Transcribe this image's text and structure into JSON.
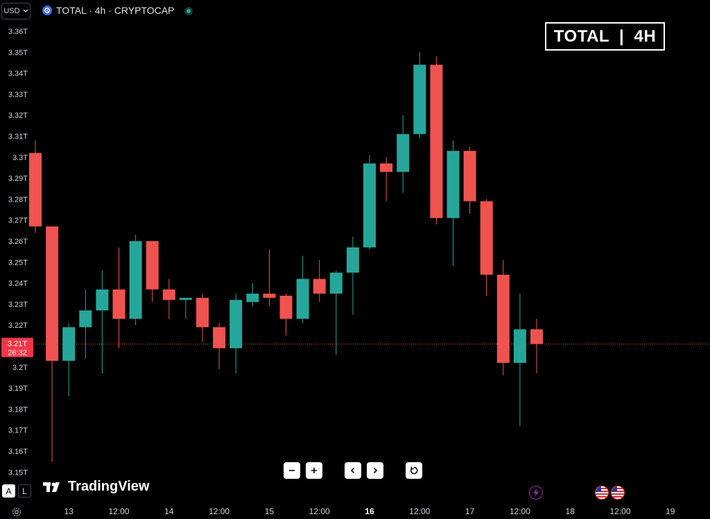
{
  "header": {
    "currency_label": "USD",
    "symbol_title": "TOTAL · 4h · CRYPTOCAP",
    "symbol_icon": "cryptocap-icon",
    "live_status_icon": "market-open-dot-icon"
  },
  "badge": {
    "text": "TOTAL  |  4H"
  },
  "price_marker": {
    "price": "3.21T",
    "countdown": "26:32",
    "color": "#f23645"
  },
  "zoom_controls": {
    "buttons": [
      "zoom-out-icon",
      "zoom-in-icon",
      "scroll-left-icon",
      "scroll-right-icon",
      "reset-icon"
    ]
  },
  "branding": {
    "logo_text": "TradingView"
  },
  "axis_toggles": {
    "auto": "A",
    "log": "L"
  },
  "events": {
    "bolt_icon": "lightning-icon",
    "flags": [
      "us-flag-icon",
      "us-flag-icon"
    ]
  },
  "colors": {
    "up": "#26a69a",
    "down": "#ef5350",
    "background": "#000000",
    "axis_text": "#d1d4dc"
  },
  "chart_data": {
    "type": "candlestick",
    "title": "TOTAL · 4h · CRYPTOCAP",
    "ylabel": "",
    "ylim": [
      3.15,
      3.36
    ],
    "y_ticks": [
      "3.36T",
      "3.35T",
      "3.34T",
      "3.33T",
      "3.32T",
      "3.31T",
      "3.3T",
      "3.29T",
      "3.28T",
      "3.27T",
      "3.26T",
      "3.25T",
      "3.24T",
      "3.23T",
      "3.22T",
      "3.21T",
      "3.2T",
      "3.19T",
      "3.18T",
      "3.17T",
      "3.16T",
      "3.15T"
    ],
    "y_tick_values": [
      3.36,
      3.35,
      3.34,
      3.33,
      3.32,
      3.31,
      3.3,
      3.29,
      3.28,
      3.27,
      3.26,
      3.25,
      3.24,
      3.23,
      3.22,
      3.21,
      3.2,
      3.19,
      3.18,
      3.17,
      3.16,
      3.15
    ],
    "x_ticks": [
      {
        "label": "13",
        "bar": 2,
        "bold": false
      },
      {
        "label": "12:00",
        "bar": 5,
        "bold": false
      },
      {
        "label": "14",
        "bar": 8,
        "bold": false
      },
      {
        "label": "12:00",
        "bar": 11,
        "bold": false
      },
      {
        "label": "15",
        "bar": 14,
        "bold": false
      },
      {
        "label": "12:00",
        "bar": 17,
        "bold": false
      },
      {
        "label": "16",
        "bar": 20,
        "bold": true
      },
      {
        "label": "12:00",
        "bar": 23,
        "bold": false
      },
      {
        "label": "17",
        "bar": 26,
        "bold": false
      },
      {
        "label": "12:00",
        "bar": 29,
        "bold": false
      },
      {
        "label": "18",
        "bar": 32,
        "bold": false
      },
      {
        "label": "12:00",
        "bar": 35,
        "bold": false
      },
      {
        "label": "19",
        "bar": 38,
        "bold": false
      }
    ],
    "candles": [
      {
        "o": 3.302,
        "h": 3.308,
        "l": 3.264,
        "c": 3.267
      },
      {
        "o": 3.267,
        "h": 3.267,
        "l": 3.155,
        "c": 3.203
      },
      {
        "o": 3.203,
        "h": 3.221,
        "l": 3.186,
        "c": 3.219
      },
      {
        "o": 3.219,
        "h": 3.237,
        "l": 3.204,
        "c": 3.227
      },
      {
        "o": 3.227,
        "h": 3.246,
        "l": 3.197,
        "c": 3.237
      },
      {
        "o": 3.237,
        "h": 3.257,
        "l": 3.209,
        "c": 3.223
      },
      {
        "o": 3.223,
        "h": 3.263,
        "l": 3.22,
        "c": 3.26
      },
      {
        "o": 3.26,
        "h": 3.26,
        "l": 3.231,
        "c": 3.237
      },
      {
        "o": 3.237,
        "h": 3.242,
        "l": 3.223,
        "c": 3.232
      },
      {
        "o": 3.232,
        "h": 3.233,
        "l": 3.223,
        "c": 3.233
      },
      {
        "o": 3.233,
        "h": 3.235,
        "l": 3.212,
        "c": 3.219
      },
      {
        "o": 3.219,
        "h": 3.221,
        "l": 3.199,
        "c": 3.209
      },
      {
        "o": 3.209,
        "h": 3.235,
        "l": 3.197,
        "c": 3.232
      },
      {
        "o": 3.231,
        "h": 3.24,
        "l": 3.229,
        "c": 3.235
      },
      {
        "o": 3.235,
        "h": 3.256,
        "l": 3.229,
        "c": 3.233
      },
      {
        "o": 3.234,
        "h": 3.235,
        "l": 3.215,
        "c": 3.223
      },
      {
        "o": 3.223,
        "h": 3.253,
        "l": 3.221,
        "c": 3.242
      },
      {
        "o": 3.242,
        "h": 3.251,
        "l": 3.231,
        "c": 3.235
      },
      {
        "o": 3.235,
        "h": 3.246,
        "l": 3.206,
        "c": 3.245
      },
      {
        "o": 3.245,
        "h": 3.262,
        "l": 3.225,
        "c": 3.257
      },
      {
        "o": 3.257,
        "h": 3.301,
        "l": 3.256,
        "c": 3.297
      },
      {
        "o": 3.297,
        "h": 3.3,
        "l": 3.279,
        "c": 3.293
      },
      {
        "o": 3.293,
        "h": 3.32,
        "l": 3.283,
        "c": 3.311
      },
      {
        "o": 3.311,
        "h": 3.35,
        "l": 3.309,
        "c": 3.344
      },
      {
        "o": 3.344,
        "h": 3.348,
        "l": 3.268,
        "c": 3.271
      },
      {
        "o": 3.271,
        "h": 3.308,
        "l": 3.248,
        "c": 3.303
      },
      {
        "o": 3.303,
        "h": 3.305,
        "l": 3.273,
        "c": 3.279
      },
      {
        "o": 3.279,
        "h": 3.28,
        "l": 3.234,
        "c": 3.244
      },
      {
        "o": 3.244,
        "h": 3.251,
        "l": 3.196,
        "c": 3.202
      },
      {
        "o": 3.202,
        "h": 3.235,
        "l": 3.172,
        "c": 3.218
      },
      {
        "o": 3.218,
        "h": 3.223,
        "l": 3.197,
        "c": 3.211
      }
    ]
  }
}
